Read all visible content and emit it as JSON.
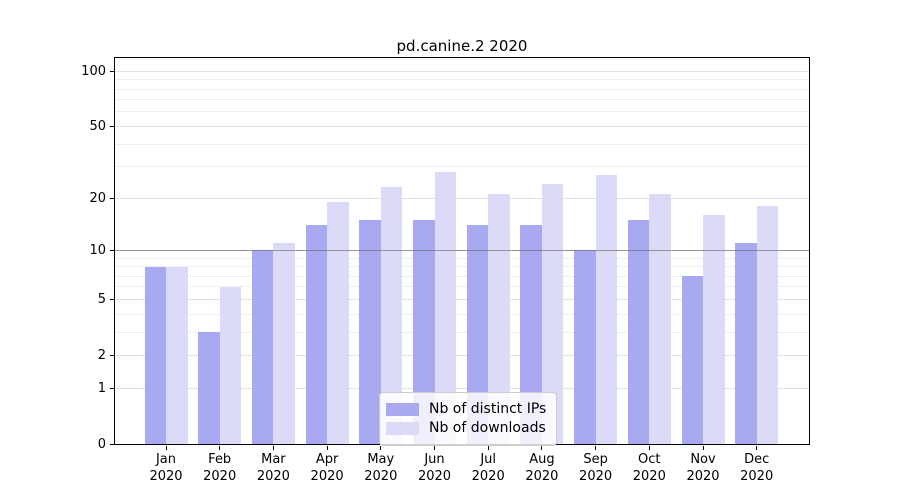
{
  "title": "pd.canine.2 2020",
  "chart_data": {
    "type": "bar",
    "title": "pd.canine.2 2020",
    "categories": [
      "Jan",
      "Feb",
      "Mar",
      "Apr",
      "May",
      "Jun",
      "Jul",
      "Aug",
      "Sep",
      "Oct",
      "Nov",
      "Dec"
    ],
    "category_year": "2020",
    "series": [
      {
        "name": "Nb of distinct IPs",
        "color": "#a9a9f1",
        "values": [
          8,
          3,
          10,
          14,
          15,
          15,
          14,
          14,
          10,
          15,
          7,
          11
        ]
      },
      {
        "name": "Nb of downloads",
        "color": "#dbdbf8",
        "values": [
          8,
          6,
          11,
          19,
          23,
          28,
          21,
          24,
          27,
          21,
          16,
          18
        ]
      }
    ],
    "yscale": "log1p",
    "ylim": [
      0,
      118
    ],
    "yticks": [
      0,
      1,
      2,
      5,
      10,
      20,
      50,
      100
    ],
    "minor_yticks": [
      3,
      4,
      6,
      7,
      8,
      9,
      30,
      40,
      60,
      70,
      80,
      90
    ],
    "reference_line": {
      "value": 10,
      "color": "rgba(90,90,90,0.55)"
    },
    "grid": true,
    "legend_position": "lower-center",
    "colors": {
      "grid_major": "#e1e1e1",
      "grid_minor": "#efefef",
      "spine": "#000000",
      "background": "#ffffff"
    }
  }
}
